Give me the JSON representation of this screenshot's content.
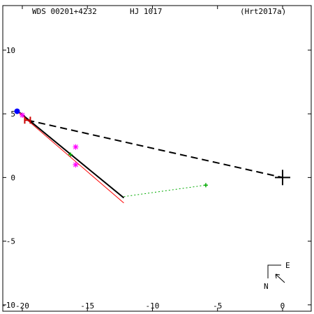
{
  "header": {
    "wds": "WDS 00201+4232",
    "name": "HJ 1017",
    "reference": "(Hrt2017a)"
  },
  "chart_data": {
    "type": "scatter",
    "xlim": [
      -21.5,
      2.2
    ],
    "ylim": [
      -10.5,
      13.5
    ],
    "x_ticks": [
      -20,
      -15,
      -10,
      -5,
      0
    ],
    "x_tick_labels": [
      "-20",
      "-15",
      "-10",
      "-5",
      "0"
    ],
    "y_ticks": [
      -10,
      -5,
      0,
      5,
      10
    ],
    "y_tick_labels": [
      "-10",
      "-5",
      "0",
      "5",
      "10"
    ],
    "primary": [
      0,
      0
    ],
    "compass": {
      "east": "E",
      "north": "N"
    },
    "series": [
      {
        "kind": "solid_black_line",
        "color": "#000000",
        "points": [
          [
            -20.2,
            5.1
          ],
          [
            -12.2,
            -1.6
          ]
        ]
      },
      {
        "kind": "solid_red_line",
        "color": "#ff0000",
        "points": [
          [
            -20.4,
            5.2
          ],
          [
            -12.2,
            -2.0
          ]
        ]
      },
      {
        "kind": "dashed_black_line",
        "color": "#000000",
        "points": [
          [
            -19.6,
            4.5
          ],
          [
            0,
            0
          ]
        ]
      },
      {
        "kind": "dotted_green_line",
        "color": "#00aa00",
        "points": [
          [
            -12.2,
            -1.5
          ],
          [
            -5.9,
            -0.6
          ]
        ]
      },
      {
        "kind": "blue_dot",
        "color": "#0000ff",
        "points": [
          [
            -20.4,
            5.2
          ]
        ]
      },
      {
        "kind": "red_marker",
        "color": "#cc0000",
        "points": [
          [
            -19.6,
            4.5
          ]
        ]
      },
      {
        "kind": "magenta_asterisk",
        "color": "#ff00ff",
        "points": [
          [
            -15.9,
            2.4
          ],
          [
            -15.9,
            1.0
          ],
          [
            -20.0,
            4.9
          ]
        ]
      },
      {
        "kind": "green_plus",
        "color": "#00aa00",
        "points": [
          [
            -16.3,
            1.8
          ],
          [
            -5.9,
            -0.6
          ]
        ]
      }
    ]
  }
}
